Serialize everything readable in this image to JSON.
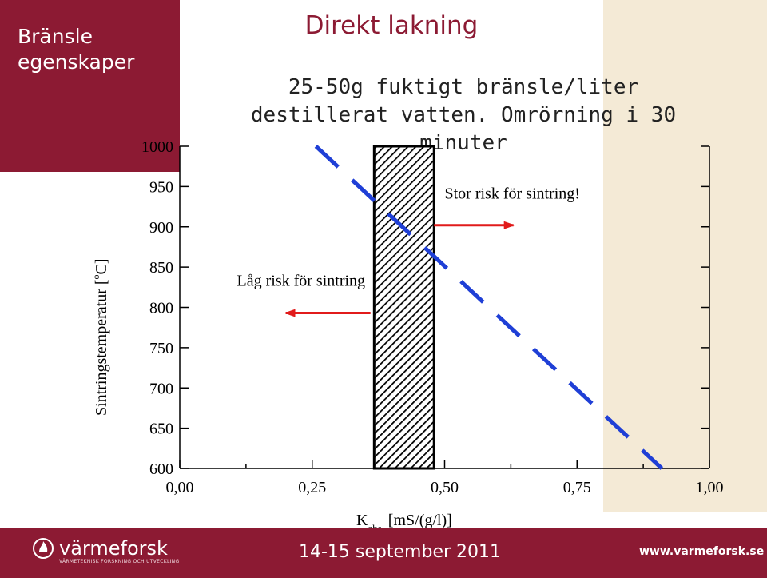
{
  "sidebar": {
    "title": "Bränsle\negenskaper"
  },
  "slide": {
    "title": "Direkt lakning",
    "subtitle": "25-50g fuktigt bränsle/liter destillerat vatten. Omrörning i 30 minuter"
  },
  "footer": {
    "logo_text": "värmeforsk",
    "logo_sub": "VÄRMETEKNISK FORSKNING OCH UTVECKLING",
    "date": "14-15 september 2011",
    "url": "www.varmeforsk.se"
  },
  "colors": {
    "brand": "#8c1a33",
    "band": "#f4ead6",
    "dash_line": "#1f3fd6",
    "arrow": "#e11b1b"
  },
  "chart_data": {
    "type": "line",
    "xlabel_main": "K",
    "xlabel_sub": "abs",
    "xlabel_unit": "[mS/(g/l)]",
    "ylabel_main": "Sintringstemperatur [",
    "ylabel_sup": "o",
    "ylabel_unit": "C]",
    "xlim": [
      0,
      1
    ],
    "ylim": [
      600,
      1000
    ],
    "x_ticks": [
      0,
      0.25,
      0.5,
      0.75,
      1
    ],
    "x_tick_labels": [
      "0,00",
      "0,25",
      "0,50",
      "0,75",
      "1,00"
    ],
    "y_ticks": [
      600,
      650,
      700,
      750,
      800,
      850,
      900,
      950,
      1000
    ],
    "y_tick_labels": [
      "600",
      "650",
      "700",
      "750",
      "800",
      "850",
      "900",
      "950",
      "1000"
    ],
    "series": [
      {
        "x": [
          0.257,
          0.91
        ],
        "y": [
          1000,
          600
        ],
        "style": "dashed"
      }
    ],
    "band": {
      "x_start": 0.367,
      "x_end": 0.48,
      "y_start": 600,
      "y_end": 1000,
      "pattern": "hatched"
    },
    "annotations": [
      {
        "text": "Låg risk för sintring",
        "x": 0.35,
        "y": 827,
        "arrow_from_x": 0.36,
        "arrow_to_x": 0.2,
        "arrow_y": 793
      },
      {
        "text": "Stor risk för sintring!",
        "x": 0.5,
        "y": 935,
        "arrow_from_x": 0.48,
        "arrow_to_x": 0.63,
        "arrow_y": 902
      }
    ]
  }
}
